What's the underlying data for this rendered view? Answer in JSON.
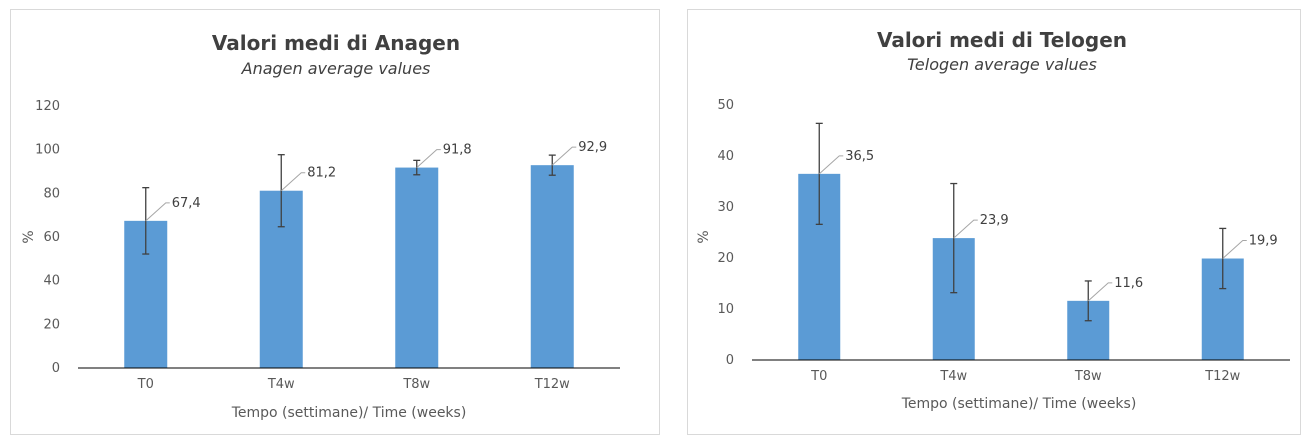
{
  "chart_data": [
    {
      "type": "bar",
      "title": "Valori medi di Anagen",
      "subtitle": "Anagen average values",
      "xlabel": "Tempo (settimane)/ Time (weeks)",
      "ylabel": "%",
      "categories": [
        "T0",
        "T4w",
        "T8w",
        "T12w"
      ],
      "values": [
        67.4,
        81.2,
        91.8,
        92.9
      ],
      "value_labels": [
        "67,4",
        "81,2",
        "91,8",
        "92,9"
      ],
      "error": [
        15.2,
        16.5,
        3.3,
        4.6
      ],
      "ylim": [
        0,
        120
      ],
      "yticks": [
        0,
        20,
        40,
        60,
        80,
        100,
        120
      ],
      "grid": false,
      "bar_color": "#5b9bd5"
    },
    {
      "type": "bar",
      "title": "Valori medi di Telogen",
      "subtitle": "Telogen average values",
      "xlabel": "Tempo (settimane)/ Time (weeks)",
      "ylabel": "%",
      "categories": [
        "T0",
        "T4w",
        "T8w",
        "T12w"
      ],
      "values": [
        36.5,
        23.9,
        11.6,
        19.9
      ],
      "value_labels": [
        "36,5",
        "23,9",
        "11,6",
        "19,9"
      ],
      "error": [
        9.9,
        10.7,
        3.9,
        5.9
      ],
      "ylim": [
        0,
        50
      ],
      "yticks": [
        0,
        10,
        20,
        30,
        40,
        50
      ],
      "grid": false,
      "bar_color": "#5b9bd5"
    }
  ]
}
